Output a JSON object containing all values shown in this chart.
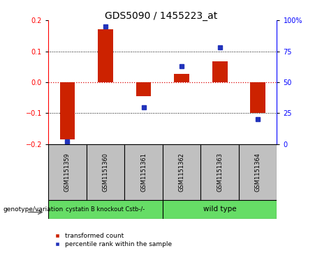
{
  "title": "GDS5090 / 1455223_at",
  "samples": [
    "GSM1151359",
    "GSM1151360",
    "GSM1151361",
    "GSM1151362",
    "GSM1151363",
    "GSM1151364"
  ],
  "red_values": [
    -0.185,
    0.17,
    -0.045,
    0.028,
    0.068,
    -0.1
  ],
  "blue_percentiles": [
    2,
    95,
    30,
    63,
    78,
    20
  ],
  "ylim_left": [
    -0.2,
    0.2
  ],
  "ylim_right": [
    0,
    100
  ],
  "yticks_left": [
    -0.2,
    -0.1,
    0,
    0.1,
    0.2
  ],
  "yticks_right": [
    0,
    25,
    50,
    75,
    100
  ],
  "group1_label": "cystatin B knockout Cstb-/-",
  "group2_label": "wild type",
  "genotype_label": "genotype/variation",
  "legend_red": "transformed count",
  "legend_blue": "percentile rank within the sample",
  "bar_color": "#CC2200",
  "dot_color": "#2233BB",
  "group_color": "#66DD66",
  "zero_line_color": "#DD0000",
  "sample_bg": "#C0C0C0",
  "bar_width": 0.4
}
